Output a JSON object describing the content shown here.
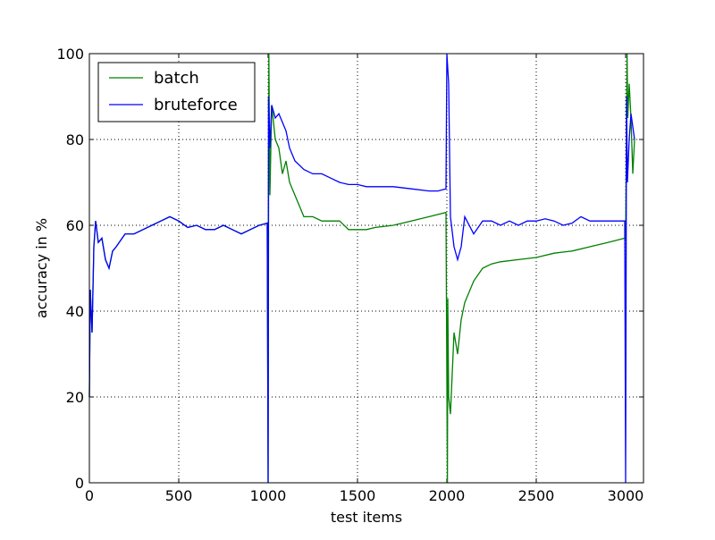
{
  "chart_data": {
    "type": "line",
    "xlabel": "test items",
    "ylabel": "accuracy in %",
    "xlim": [
      0,
      3100
    ],
    "ylim": [
      0,
      100
    ],
    "xticks": [
      0,
      500,
      1000,
      1500,
      2000,
      2500,
      3000
    ],
    "yticks": [
      0,
      20,
      40,
      60,
      80,
      100
    ],
    "grid": true,
    "legend": "upper-left",
    "series": [
      {
        "name": "batch",
        "color": "#008000",
        "x": [
          0,
          5,
          15,
          25,
          35,
          50,
          70,
          90,
          110,
          130,
          150,
          200,
          250,
          300,
          350,
          400,
          450,
          500,
          550,
          600,
          650,
          700,
          750,
          800,
          850,
          900,
          950,
          995,
          1000,
          1004,
          1010,
          1020,
          1040,
          1060,
          1080,
          1100,
          1120,
          1150,
          1200,
          1250,
          1300,
          1350,
          1400,
          1450,
          1500,
          1550,
          1600,
          1700,
          1800,
          1900,
          1995,
          2003,
          2005,
          2010,
          2020,
          2040,
          2060,
          2080,
          2100,
          2150,
          2200,
          2250,
          2300,
          2400,
          2500,
          2600,
          2700,
          2800,
          2900,
          2995,
          3000,
          3008,
          3012,
          3020,
          3030,
          3040,
          3050
        ],
        "values": [
          20,
          45,
          35,
          55,
          61,
          56,
          57,
          52,
          50,
          54,
          55,
          58,
          58,
          59,
          60,
          61,
          62,
          61,
          59.5,
          60,
          59,
          59,
          60,
          59,
          58,
          59,
          60,
          60.5,
          0,
          100,
          67,
          88,
          80,
          78,
          72,
          75,
          70,
          67,
          62,
          62,
          61,
          61,
          61,
          59,
          59,
          59,
          59.5,
          60,
          61,
          62,
          63,
          0,
          43,
          20,
          16,
          35,
          30,
          38,
          42,
          47,
          50,
          51,
          51.5,
          52,
          52.5,
          53.5,
          54,
          55,
          56,
          57,
          57,
          100,
          85,
          93,
          85,
          72,
          80
        ]
      },
      {
        "name": "bruteforce",
        "color": "#0000ff",
        "x": [
          0,
          5,
          15,
          25,
          35,
          50,
          70,
          90,
          110,
          130,
          150,
          200,
          250,
          300,
          350,
          400,
          450,
          500,
          550,
          600,
          650,
          700,
          750,
          800,
          850,
          900,
          950,
          995,
          1000,
          1002,
          1010,
          1020,
          1040,
          1060,
          1080,
          1100,
          1120,
          1150,
          1200,
          1250,
          1300,
          1350,
          1400,
          1450,
          1500,
          1550,
          1600,
          1700,
          1800,
          1900,
          1950,
          1995,
          2000,
          2010,
          2020,
          2040,
          2060,
          2080,
          2100,
          2150,
          2200,
          2250,
          2300,
          2350,
          2400,
          2450,
          2500,
          2550,
          2600,
          2650,
          2700,
          2750,
          2800,
          2900,
          2995,
          3000,
          3005,
          3010,
          3020,
          3030,
          3040,
          3050
        ],
        "values": [
          20,
          45,
          35,
          55,
          61,
          56,
          57,
          52,
          50,
          54,
          55,
          58,
          58,
          59,
          60,
          61,
          62,
          61,
          59.5,
          60,
          59,
          59,
          60,
          59,
          58,
          59,
          60,
          60.5,
          0,
          90,
          78,
          88,
          85,
          86,
          84,
          82,
          78,
          75,
          73,
          72,
          72,
          71,
          70,
          69.5,
          69.5,
          69,
          69,
          69,
          68.5,
          68,
          68,
          68.5,
          100,
          93,
          62,
          55,
          52,
          55,
          62,
          58,
          61,
          61,
          60,
          61,
          60,
          61,
          61,
          61.5,
          61,
          60,
          60.5,
          62,
          61,
          61,
          61,
          0,
          90,
          70,
          80,
          86,
          83,
          80
        ]
      }
    ]
  }
}
